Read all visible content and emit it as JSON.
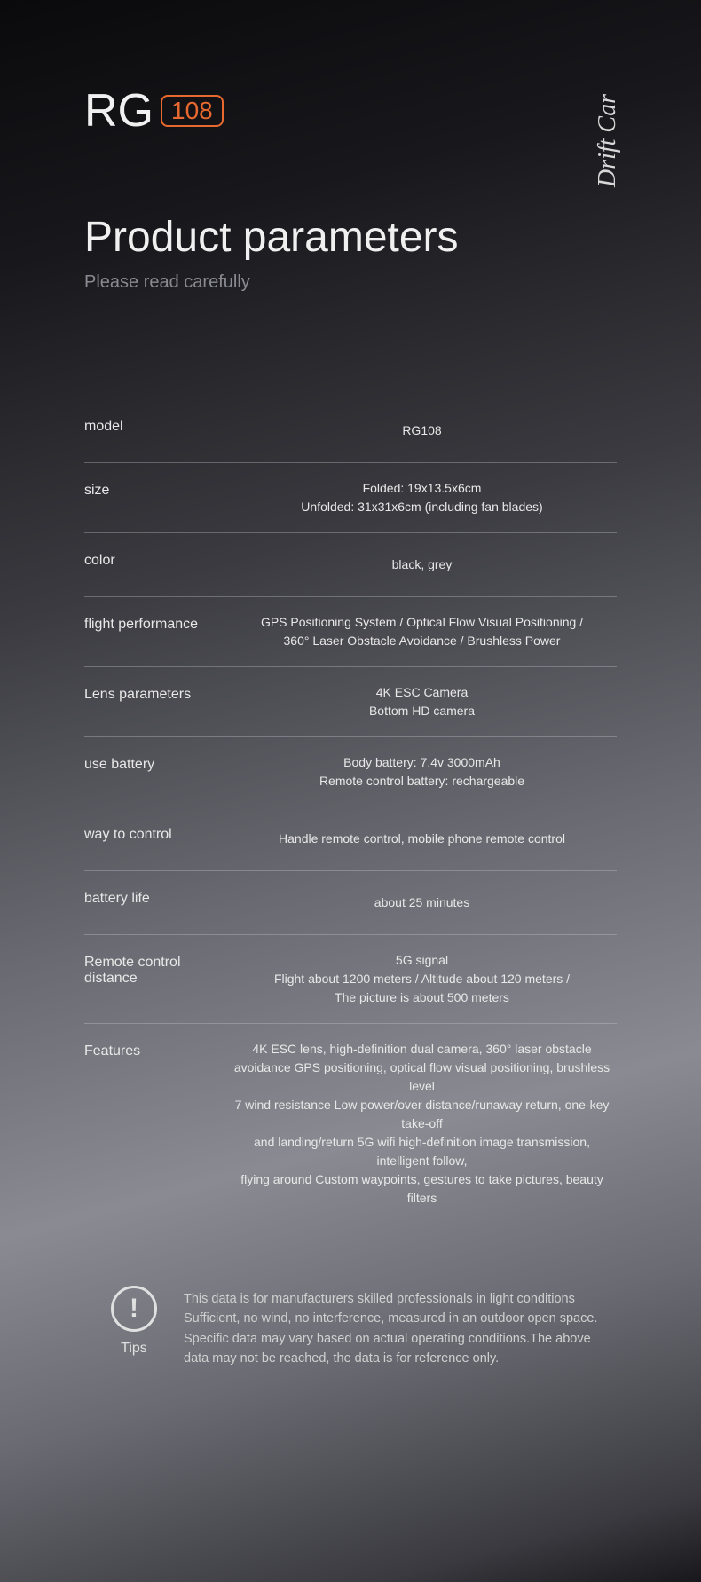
{
  "logo": {
    "prefix": "RG",
    "badge": "108"
  },
  "tagline": "Drift Car",
  "title": "Product parameters",
  "subtitle": "Please read carefully",
  "specs": [
    {
      "label": "model",
      "lines": [
        "RG108"
      ]
    },
    {
      "label": "size",
      "lines": [
        "Folded: 19x13.5x6cm",
        "Unfolded: 31x31x6cm (including fan blades)"
      ]
    },
    {
      "label": "color",
      "lines": [
        "black, grey"
      ]
    },
    {
      "label": "flight performance",
      "lines": [
        "GPS Positioning System / Optical Flow Visual Positioning /",
        "360° Laser Obstacle Avoidance / Brushless Power"
      ]
    },
    {
      "label": "Lens parameters",
      "lines": [
        "4K ESC Camera",
        "Bottom HD camera"
      ]
    },
    {
      "label": "use battery",
      "lines": [
        "Body battery: 7.4v 3000mAh",
        "Remote control battery: rechargeable"
      ]
    },
    {
      "label": "way to control",
      "lines": [
        "Handle remote control, mobile phone remote control"
      ]
    },
    {
      "label": "battery life",
      "lines": [
        "about 25 minutes"
      ]
    },
    {
      "label": "Remote control distance",
      "lines": [
        "5G signal",
        "Flight about 1200 meters / Altitude about 120 meters /",
        "The picture is about 500 meters"
      ]
    },
    {
      "label": "Features",
      "lines": [
        "4K ESC lens, high-definition dual camera, 360° laser obstacle",
        "avoidance GPS positioning, optical flow visual positioning, brushless level",
        "7 wind resistance Low power/over distance/runaway return, one-key take-off",
        "and landing/return 5G wifi high-definition image transmission, intelligent follow,",
        "flying around Custom waypoints, gestures to take pictures, beauty filters"
      ]
    }
  ],
  "tips": {
    "label": "Tips",
    "text": "This data is for manufacturers skilled professionals in light conditions Sufficient, no wind, no interference, measured in an outdoor open space. Specific data may vary based on actual operating conditions.The above data may not be reached, the data is for reference only."
  }
}
